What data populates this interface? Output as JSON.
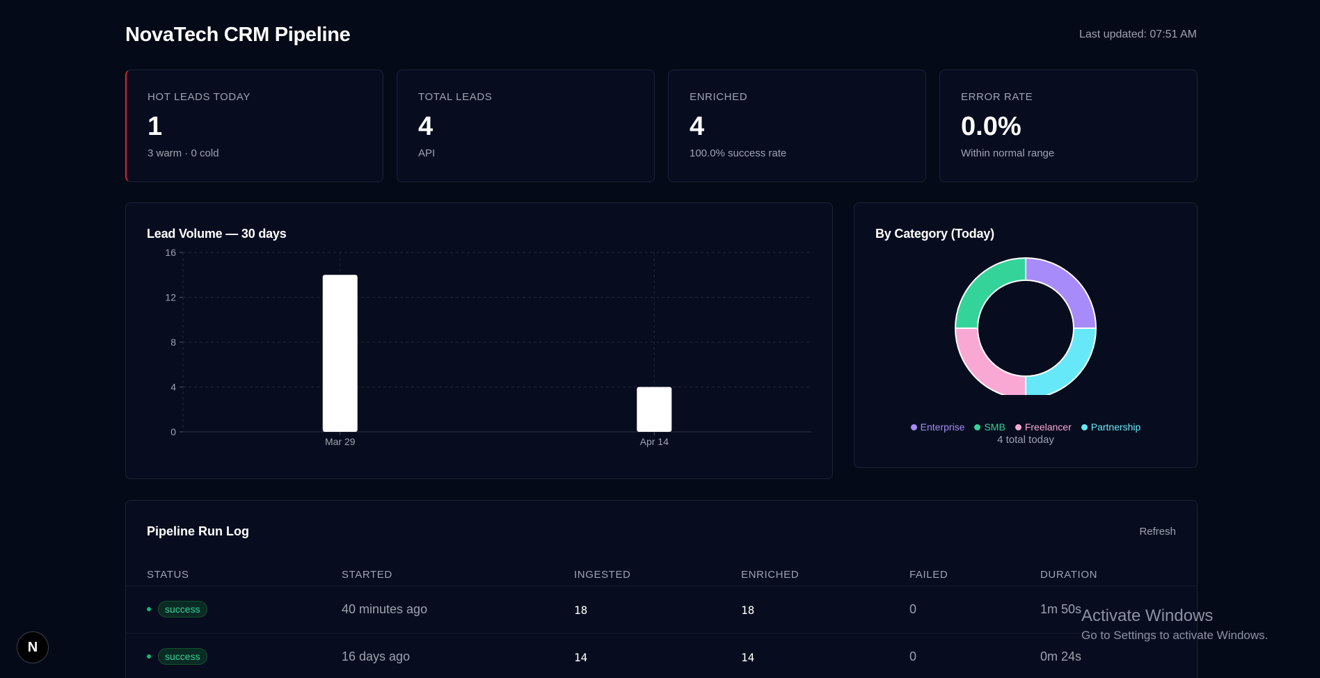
{
  "header": {
    "title": "NovaTech CRM Pipeline",
    "last_updated": "Last updated: 07:51 AM"
  },
  "stats": [
    {
      "label": "HOT LEADS TODAY",
      "value": "1",
      "sub": "3 warm · 0 cold",
      "accent": "#dc2626"
    },
    {
      "label": "TOTAL LEADS",
      "value": "4",
      "sub": "API"
    },
    {
      "label": "ENRICHED",
      "value": "4",
      "sub": "100.0% success rate"
    },
    {
      "label": "ERROR RATE",
      "value": "0.0%",
      "sub": "Within normal range"
    }
  ],
  "lead_volume": {
    "title": "Lead Volume — 30 days"
  },
  "by_category": {
    "title": "By Category (Today)",
    "total": "4 total today",
    "legend": [
      {
        "label": "Enterprise",
        "color": "#a78bfa"
      },
      {
        "label": "SMB",
        "color": "#34d399"
      },
      {
        "label": "Freelancer",
        "color": "#f9a8d4"
      },
      {
        "label": "Partnership",
        "color": "#67e8f9"
      }
    ]
  },
  "chart_data": [
    {
      "type": "bar",
      "title": "Lead Volume — 30 days",
      "categories": [
        "Mar 29",
        "Apr 14"
      ],
      "values": [
        14,
        4
      ],
      "ylim": [
        0,
        16
      ],
      "yticks": [
        0,
        4,
        8,
        12,
        16
      ],
      "grid": true,
      "bar_color": "#ffffff"
    },
    {
      "type": "pie",
      "title": "By Category (Today)",
      "donut": true,
      "labels": [
        "Enterprise",
        "Partnership",
        "Freelancer",
        "SMB"
      ],
      "values": [
        1,
        1,
        1,
        1
      ],
      "colors": [
        "#a78bfa",
        "#67e8f9",
        "#f9a8d4",
        "#34d399"
      ],
      "legend_position": "bottom"
    }
  ],
  "run_log": {
    "title": "Pipeline Run Log",
    "refresh_label": "Refresh",
    "columns": [
      "STATUS",
      "STARTED",
      "INGESTED",
      "ENRICHED",
      "FAILED",
      "DURATION"
    ],
    "rows": [
      {
        "status": "success",
        "started": "40 minutes ago",
        "ingested": "18",
        "enriched": "18",
        "failed": "0",
        "duration": "1m 50s"
      },
      {
        "status": "success",
        "started": "16 days ago",
        "ingested": "14",
        "enriched": "14",
        "failed": "0",
        "duration": "0m 24s"
      }
    ]
  },
  "watermark": {
    "line1": "Activate Windows",
    "line2": "Go to Settings to activate Windows."
  },
  "next_badge": {
    "label": "N"
  }
}
